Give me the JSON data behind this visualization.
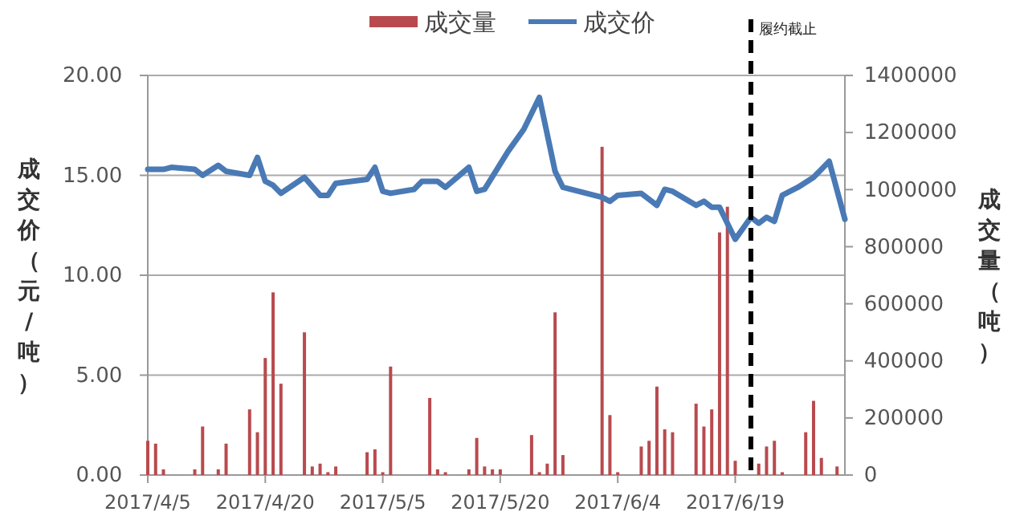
{
  "chart_data": {
    "type": "bar",
    "ylabel": "成交价（元/吨）",
    "y2label": "成交量（吨）",
    "legend": "top",
    "grid": "y",
    "xlim": [
      "2017-04-05",
      "2017-07-03"
    ],
    "xticks": [
      {
        "value": "2017-04-05",
        "label": "2017/4/5"
      },
      {
        "value": "2017-04-20",
        "label": "2017/4/20"
      },
      {
        "value": "2017-05-05",
        "label": "2017/5/5"
      },
      {
        "value": "2017-05-20",
        "label": "2017/5/20"
      },
      {
        "value": "2017-06-04",
        "label": "2017/6/4"
      },
      {
        "value": "2017-06-19",
        "label": "2017/6/19"
      }
    ],
    "ylim": [
      0,
      20
    ],
    "yticks": [
      {
        "value": 0,
        "label": "0.00"
      },
      {
        "value": 5,
        "label": "5.00"
      },
      {
        "value": 10,
        "label": "10.00"
      },
      {
        "value": 15,
        "label": "15.00"
      },
      {
        "value": 20,
        "label": "20.00"
      }
    ],
    "y2lim": [
      0,
      1400000
    ],
    "y2ticks": [
      0,
      200000,
      400000,
      600000,
      800000,
      1000000,
      1200000,
      1400000
    ],
    "ref_lines": [
      {
        "axis": "x",
        "value": "2017-06-21",
        "label": "履约截止",
        "color": "#000000",
        "line_style": "dashed"
      }
    ],
    "series": [
      {
        "name": "成交量",
        "axis": "y2",
        "color": "#b84a4e",
        "x": [
          "2017-04-05",
          "2017-04-06",
          "2017-04-07",
          "2017-04-11",
          "2017-04-12",
          "2017-04-14",
          "2017-04-15",
          "2017-04-18",
          "2017-04-19",
          "2017-04-20",
          "2017-04-21",
          "2017-04-22",
          "2017-04-25",
          "2017-04-26",
          "2017-04-27",
          "2017-04-28",
          "2017-04-29",
          "2017-05-03",
          "2017-05-04",
          "2017-05-05",
          "2017-05-06",
          "2017-05-11",
          "2017-05-12",
          "2017-05-13",
          "2017-05-16",
          "2017-05-17",
          "2017-05-18",
          "2017-05-19",
          "2017-05-20",
          "2017-05-24",
          "2017-05-25",
          "2017-05-26",
          "2017-05-27",
          "2017-05-28",
          "2017-06-02",
          "2017-06-03",
          "2017-06-04",
          "2017-06-07",
          "2017-06-08",
          "2017-06-09",
          "2017-06-10",
          "2017-06-11",
          "2017-06-14",
          "2017-06-15",
          "2017-06-16",
          "2017-06-17",
          "2017-06-18",
          "2017-06-19",
          "2017-06-22",
          "2017-06-23",
          "2017-06-24",
          "2017-06-25",
          "2017-06-28",
          "2017-06-29",
          "2017-06-30",
          "2017-07-02"
        ],
        "values": [
          120000,
          110000,
          20000,
          20000,
          170000,
          20000,
          110000,
          230000,
          150000,
          410000,
          640000,
          320000,
          500000,
          30000,
          40000,
          10000,
          30000,
          80000,
          90000,
          10000,
          380000,
          270000,
          20000,
          10000,
          20000,
          130000,
          30000,
          20000,
          20000,
          140000,
          10000,
          40000,
          570000,
          70000,
          1150000,
          210000,
          10000,
          100000,
          120000,
          310000,
          160000,
          150000,
          250000,
          170000,
          230000,
          850000,
          940000,
          50000,
          40000,
          100000,
          120000,
          10000,
          150000,
          260000,
          60000,
          30000
        ]
      },
      {
        "name": "成交价",
        "type": "line",
        "axis": "y",
        "color": "#4a7ab5",
        "marker": "none",
        "x": [
          "2017-04-05",
          "2017-04-07",
          "2017-04-08",
          "2017-04-11",
          "2017-04-12",
          "2017-04-14",
          "2017-04-15",
          "2017-04-18",
          "2017-04-19",
          "2017-04-20",
          "2017-04-21",
          "2017-04-22",
          "2017-04-25",
          "2017-04-27",
          "2017-04-28",
          "2017-04-29",
          "2017-05-03",
          "2017-05-04",
          "2017-05-05",
          "2017-05-06",
          "2017-05-09",
          "2017-05-10",
          "2017-05-12",
          "2017-05-13",
          "2017-05-16",
          "2017-05-17",
          "2017-05-18",
          "2017-05-21",
          "2017-05-23",
          "2017-05-25",
          "2017-05-27",
          "2017-05-28",
          "2017-05-30",
          "2017-06-02",
          "2017-06-03",
          "2017-06-04",
          "2017-06-07",
          "2017-06-09",
          "2017-06-10",
          "2017-06-11",
          "2017-06-14",
          "2017-06-15",
          "2017-06-16",
          "2017-06-17",
          "2017-06-19",
          "2017-06-21",
          "2017-06-22",
          "2017-06-23",
          "2017-06-24",
          "2017-06-25",
          "2017-06-27",
          "2017-06-29",
          "2017-07-01",
          "2017-07-03"
        ],
        "values": [
          15.3,
          15.3,
          15.4,
          15.3,
          15.0,
          15.5,
          15.2,
          15.0,
          15.9,
          14.7,
          14.5,
          14.1,
          14.9,
          14.0,
          14.0,
          14.6,
          14.8,
          15.4,
          14.2,
          14.1,
          14.3,
          14.7,
          14.7,
          14.4,
          15.4,
          14.2,
          14.3,
          16.2,
          17.3,
          18.9,
          15.2,
          14.4,
          14.2,
          13.9,
          13.7,
          14.0,
          14.1,
          13.5,
          14.3,
          14.2,
          13.5,
          13.7,
          13.4,
          13.4,
          11.8,
          12.9,
          12.6,
          12.9,
          12.7,
          14.0,
          14.4,
          14.9,
          15.7,
          12.8
        ]
      }
    ]
  }
}
